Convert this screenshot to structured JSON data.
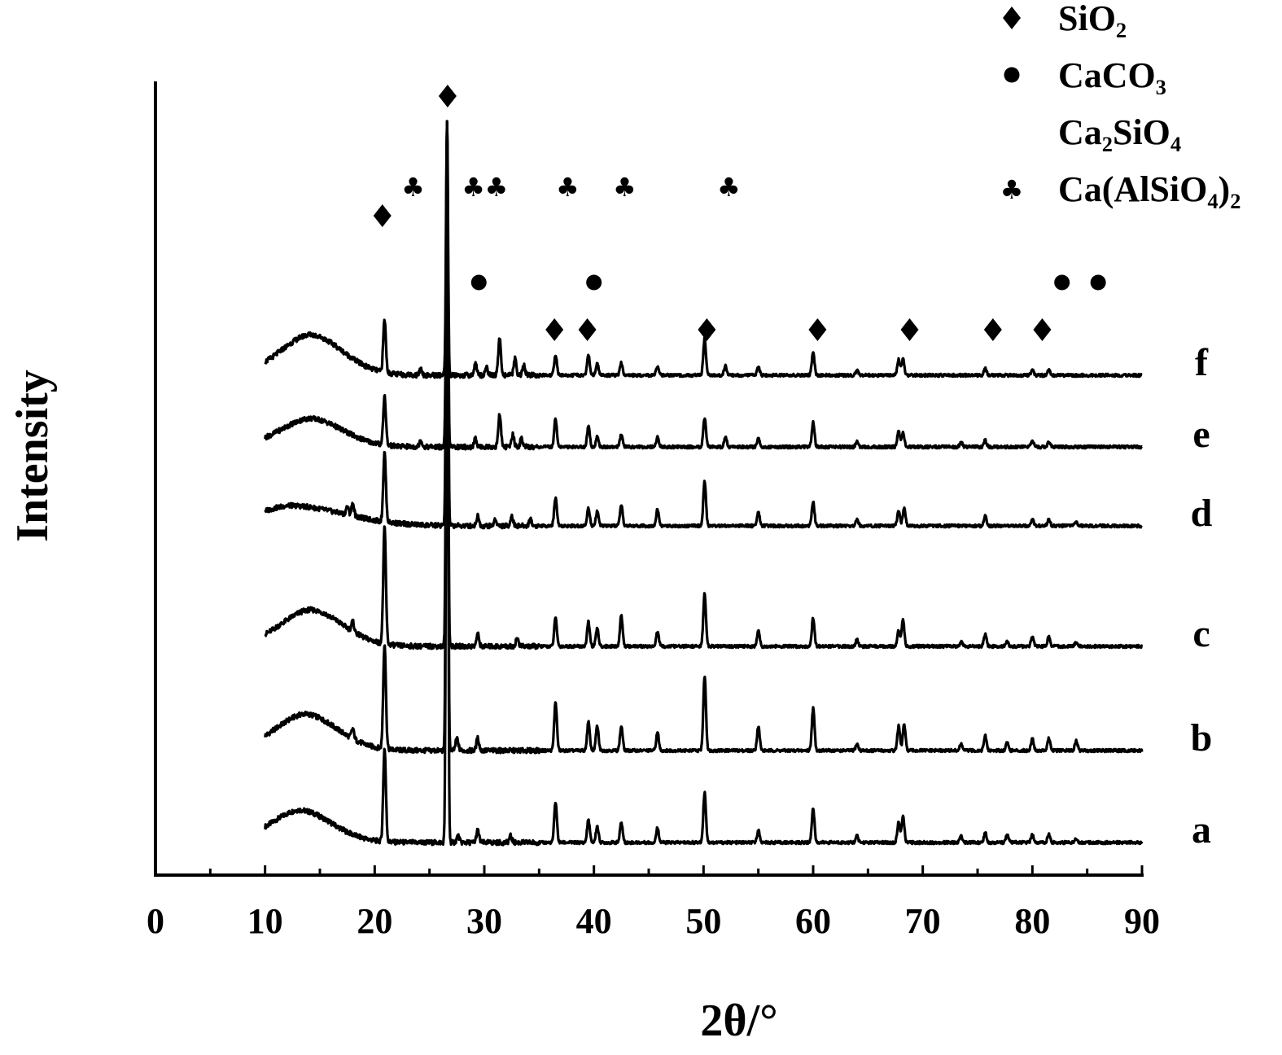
{
  "chart_data": {
    "type": "line",
    "title": "",
    "xlabel": "2θ/°",
    "ylabel": "Intensity",
    "xlim": [
      0,
      90
    ],
    "ylim": [
      0,
      975
    ],
    "xticks": [
      "0",
      "10",
      "20",
      "30",
      "40",
      "50",
      "60",
      "70",
      "80",
      "90"
    ],
    "grid": false,
    "legend_position": "top-right",
    "legend": [
      {
        "marker": "diamond",
        "label": "SiO₂"
      },
      {
        "marker": "circle",
        "label": "CaCO₃"
      },
      {
        "marker": "none",
        "label": "Ca₂SiO₄"
      },
      {
        "marker": "club",
        "label": "Ca(AlSiO₄)₂"
      }
    ],
    "series": [
      {
        "name": "a",
        "offset": 40,
        "range": [
          10,
          90
        ],
        "hump": [
          13,
          40,
          3
        ],
        "peaks": [
          [
            20.9,
            115
          ],
          [
            26.6,
            885
          ],
          [
            27.6,
            8
          ],
          [
            29.4,
            15
          ],
          [
            32.4,
            8
          ],
          [
            36.5,
            50
          ],
          [
            39.5,
            28
          ],
          [
            40.3,
            20
          ],
          [
            42.5,
            25
          ],
          [
            45.8,
            18
          ],
          [
            50.1,
            62
          ],
          [
            55.0,
            15
          ],
          [
            60.0,
            42
          ],
          [
            64.0,
            8
          ],
          [
            67.8,
            25
          ],
          [
            68.2,
            32
          ],
          [
            73.5,
            8
          ],
          [
            75.7,
            12
          ],
          [
            77.7,
            10
          ],
          [
            80.0,
            10
          ],
          [
            81.5,
            10
          ],
          [
            84.0,
            5
          ]
        ]
      },
      {
        "name": "b",
        "offset": 153,
        "range": [
          10,
          90
        ],
        "hump": [
          13.5,
          45,
          3
        ],
        "peaks": [
          [
            18.0,
            12
          ],
          [
            20.9,
            130
          ],
          [
            26.6,
            772
          ],
          [
            27.5,
            15
          ],
          [
            29.4,
            15
          ],
          [
            36.5,
            60
          ],
          [
            39.5,
            35
          ],
          [
            40.3,
            30
          ],
          [
            42.5,
            30
          ],
          [
            45.8,
            22
          ],
          [
            50.1,
            92
          ],
          [
            55.0,
            30
          ],
          [
            60.0,
            52
          ],
          [
            64.0,
            8
          ],
          [
            67.8,
            30
          ],
          [
            68.3,
            32
          ],
          [
            73.5,
            8
          ],
          [
            75.7,
            18
          ],
          [
            77.7,
            10
          ],
          [
            80.0,
            15
          ],
          [
            81.5,
            15
          ],
          [
            84.0,
            12
          ]
        ]
      },
      {
        "name": "c",
        "offset": 281,
        "range": [
          10,
          90
        ],
        "hump": [
          14,
          45,
          3
        ],
        "peaks": [
          [
            18.0,
            12
          ],
          [
            20.9,
            143
          ],
          [
            26.6,
            644
          ],
          [
            29.4,
            15
          ],
          [
            33.0,
            10
          ],
          [
            36.5,
            35
          ],
          [
            39.5,
            30
          ],
          [
            40.3,
            22
          ],
          [
            42.5,
            38
          ],
          [
            45.8,
            18
          ],
          [
            50.1,
            65
          ],
          [
            55.0,
            20
          ],
          [
            60.0,
            35
          ],
          [
            64.0,
            8
          ],
          [
            67.8,
            20
          ],
          [
            68.2,
            32
          ],
          [
            73.5,
            6
          ],
          [
            75.7,
            15
          ],
          [
            77.7,
            6
          ],
          [
            80.0,
            12
          ],
          [
            81.5,
            12
          ],
          [
            84.0,
            5
          ]
        ]
      },
      {
        "name": "d",
        "offset": 429,
        "range": [
          10,
          90
        ],
        "hump": [
          12,
          25,
          5
        ],
        "peaks": [
          [
            17.5,
            10
          ],
          [
            18.0,
            15
          ],
          [
            20.9,
            85
          ],
          [
            26.6,
            496
          ],
          [
            29.4,
            12
          ],
          [
            31.0,
            8
          ],
          [
            32.5,
            12
          ],
          [
            34.2,
            8
          ],
          [
            36.5,
            35
          ],
          [
            39.5,
            22
          ],
          [
            40.3,
            18
          ],
          [
            42.5,
            25
          ],
          [
            45.8,
            20
          ],
          [
            50.1,
            55
          ],
          [
            55.0,
            18
          ],
          [
            60.0,
            30
          ],
          [
            64.0,
            8
          ],
          [
            67.8,
            18
          ],
          [
            68.3,
            22
          ],
          [
            75.7,
            12
          ],
          [
            80.0,
            8
          ],
          [
            81.5,
            8
          ],
          [
            84.0,
            5
          ]
        ]
      },
      {
        "name": "e",
        "offset": 526,
        "range": [
          10,
          90
        ],
        "hump": [
          14,
          35,
          3
        ],
        "peaks": [
          [
            24.2,
            8
          ],
          [
            20.9,
            60
          ],
          [
            26.6,
            399
          ],
          [
            29.2,
            10
          ],
          [
            31.4,
            40
          ],
          [
            32.6,
            15
          ],
          [
            33.4,
            10
          ],
          [
            36.5,
            35
          ],
          [
            39.5,
            25
          ],
          [
            40.3,
            12
          ],
          [
            42.5,
            15
          ],
          [
            45.8,
            12
          ],
          [
            50.1,
            35
          ],
          [
            52.0,
            12
          ],
          [
            55.0,
            10
          ],
          [
            60.0,
            30
          ],
          [
            64.0,
            6
          ],
          [
            67.8,
            20
          ],
          [
            68.2,
            18
          ],
          [
            73.5,
            6
          ],
          [
            75.7,
            8
          ],
          [
            80.0,
            8
          ],
          [
            81.5,
            6
          ]
        ]
      },
      {
        "name": "f",
        "offset": 614,
        "range": [
          10,
          90
        ],
        "hump": [
          14,
          50,
          3
        ],
        "peaks": [
          [
            24.2,
            8
          ],
          [
            20.9,
            65
          ],
          [
            26.6,
            311
          ],
          [
            29.2,
            15
          ],
          [
            30.2,
            10
          ],
          [
            31.4,
            45
          ],
          [
            32.8,
            20
          ],
          [
            33.6,
            12
          ],
          [
            36.5,
            25
          ],
          [
            39.5,
            25
          ],
          [
            40.3,
            15
          ],
          [
            42.5,
            15
          ],
          [
            45.8,
            10
          ],
          [
            50.1,
            45
          ],
          [
            52.0,
            12
          ],
          [
            55.0,
            10
          ],
          [
            60.0,
            28
          ],
          [
            64.0,
            6
          ],
          [
            67.8,
            20
          ],
          [
            68.2,
            20
          ],
          [
            75.7,
            8
          ],
          [
            80.0,
            6
          ],
          [
            81.5,
            6
          ]
        ]
      }
    ],
    "markers": [
      {
        "phase": "SiO₂",
        "shape": "diamond",
        "row": 0,
        "x": [
          26.65
        ]
      },
      {
        "phase": "SiO₂",
        "shape": "diamond",
        "row": 2,
        "x": [
          20.7
        ]
      },
      {
        "phase": "Ca(AlSiO₄)₂",
        "shape": "club",
        "row": 1,
        "x": [
          23.5,
          29.0,
          31.1,
          37.6,
          42.8,
          52.3
        ]
      },
      {
        "phase": "CaCO₃",
        "shape": "circle",
        "row": 3,
        "x": [
          29.5,
          40.0,
          82.7,
          86.0
        ]
      },
      {
        "phase": "SiO₂",
        "shape": "diamond",
        "row": 4,
        "x": [
          36.4,
          39.4,
          50.3,
          60.4,
          68.8,
          76.4,
          80.9
        ]
      }
    ]
  }
}
